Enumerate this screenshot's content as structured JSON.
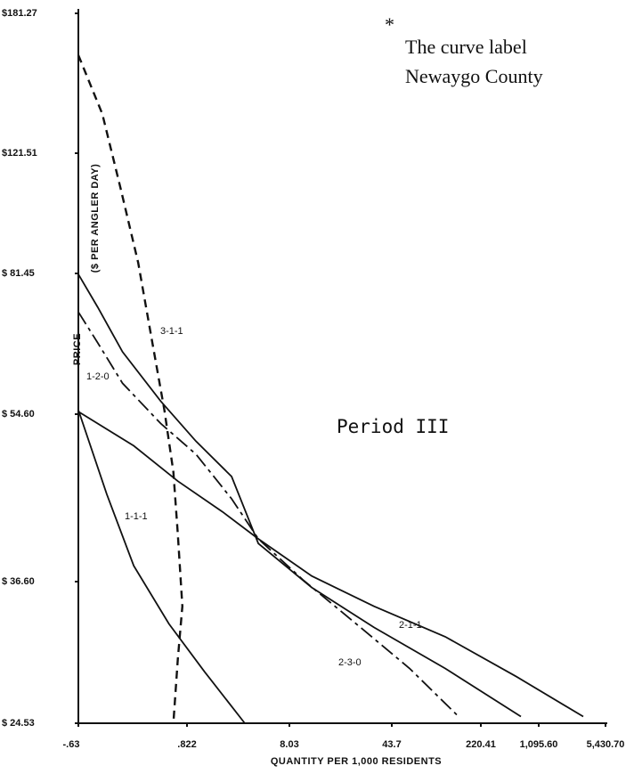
{
  "chart_data": {
    "type": "line",
    "annotations": [
      "*",
      "The curve label",
      "Newaygo County",
      "Period III"
    ],
    "xlabel": "QUANTITY PER 1,000 RESIDENTS",
    "ylabel": [
      "PRICE",
      "($ PER ANGLER DAY)"
    ],
    "xticks": [
      {
        "value": -0.63,
        "label": "-.63"
      },
      {
        "value": 0.822,
        "label": ".822"
      },
      8.03,
      43.7,
      220.41,
      {
        "value": 1095.6,
        "label": "1,095.60"
      },
      {
        "value": 5430.7,
        "label": "5,430.70"
      }
    ],
    "xlim": [
      -0.63,
      5430.7
    ],
    "yticks": [
      {
        "value": 24.53,
        "label": "$ 24.53"
      },
      {
        "value": 36.6,
        "label": "$ 36.60"
      },
      {
        "value": 54.6,
        "label": "$ 54.60"
      },
      {
        "value": 81.45,
        "label": "$ 81.45"
      },
      {
        "value": 121.51,
        "label": "$121.51"
      },
      {
        "value": 181.27,
        "label": "$181.27"
      }
    ],
    "ylim": [
      24.53,
      181.27
    ],
    "series": [
      {
        "name": "3-1-1",
        "color": "#111",
        "style": "dashed",
        "x": [
          -0.63,
          -0.31,
          -0.07,
          0.17,
          0.35,
          0.52,
          0.64,
          0.7,
          0.76,
          0.7,
          0.64
        ],
        "values": [
          163.4,
          138.3,
          110.2,
          85.0,
          69.0,
          55.4,
          48.4,
          41.7,
          34.5,
          30.0,
          24.53
        ]
      },
      {
        "name": "1-2-0",
        "color": "#111",
        "style": "solid",
        "x": [
          -0.63,
          -0.37,
          -0.04,
          0.47,
          1.45,
          3.96,
          5.84,
          15.8,
          37.5,
          149.7,
          826.3
        ],
        "values": [
          81.3,
          75.0,
          66.5,
          57.1,
          51.7,
          47.9,
          40.7,
          36.1,
          32.7,
          29.2,
          25.1
        ]
      },
      {
        "name": "1-1-1",
        "color": "#111",
        "style": "solid",
        "x": [
          -0.63,
          -0.25,
          0.11,
          0.58,
          2.07,
          4.89
        ],
        "values": [
          55.4,
          46.0,
          38.3,
          33.0,
          28.9,
          24.53
        ]
      },
      {
        "name": "2-1-1",
        "color": "#111",
        "style": "solid",
        "x": [
          -0.63,
          0.11,
          0.7,
          3.33,
          5.84,
          15.8,
          37.5,
          149.7,
          758.9,
          3985.7
        ],
        "values": [
          55.1,
          51.2,
          47.4,
          44.1,
          41.2,
          37.2,
          34.5,
          31.9,
          28.5,
          25.1
        ]
      },
      {
        "name": "2-3-0",
        "color": "#111",
        "style": "dashdot",
        "x": [
          -0.63,
          -0.37,
          -0.04,
          0.47,
          1.45,
          3.96,
          5.84,
          12.7,
          31.3,
          79.0,
          176.2
        ],
        "values": [
          74.1,
          68.2,
          60.5,
          53.6,
          50.3,
          45.5,
          41.2,
          36.8,
          33.0,
          29.2,
          25.1
        ]
      }
    ]
  }
}
